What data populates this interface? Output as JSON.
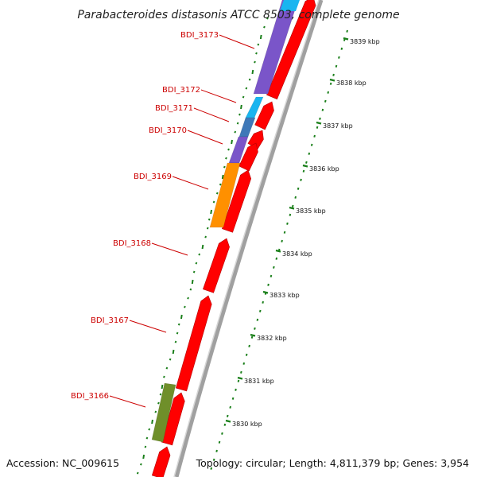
{
  "title": "Parabacteroides distasonis ATCC 8503, complete genome",
  "accession": "Accession: NC_009615",
  "topology": "Topology: circular; Length: 4,811,379 bp; Genes: 3,954",
  "colors": {
    "forward_cds": "#ff0000",
    "label_red": "#cc0000",
    "gc_dots": "#1a7f1a",
    "backbone": "#8c8c8c",
    "purple": "#7a55c9",
    "cyan": "#19b5f0",
    "steelblue": "#3f78b8",
    "orange": "#ff9000",
    "olive": "#6f8f2a"
  },
  "ticks": [
    {
      "label": "3839 kbp"
    },
    {
      "label": "3838 kbp"
    },
    {
      "label": "3837 kbp"
    },
    {
      "label": "3836 kbp"
    },
    {
      "label": "3835 kbp"
    },
    {
      "label": "3834 kbp"
    },
    {
      "label": "3833 kbp"
    },
    {
      "label": "3832 kbp"
    },
    {
      "label": "3831 kbp"
    },
    {
      "label": "3830 kbp"
    }
  ],
  "genes": [
    {
      "label": "BDI_3173",
      "color": "purple"
    },
    {
      "label": "BDI_3172",
      "color": "cyan"
    },
    {
      "label": "BDI_3171",
      "color": "steelblue"
    },
    {
      "label": "BDI_3170",
      "color": "purple"
    },
    {
      "label": "BDI_3169",
      "color": "orange"
    },
    {
      "label": "BDI_3168",
      "color": "red"
    },
    {
      "label": "BDI_3167",
      "color": "red"
    },
    {
      "label": "BDI_3166",
      "color": "olive"
    }
  ]
}
